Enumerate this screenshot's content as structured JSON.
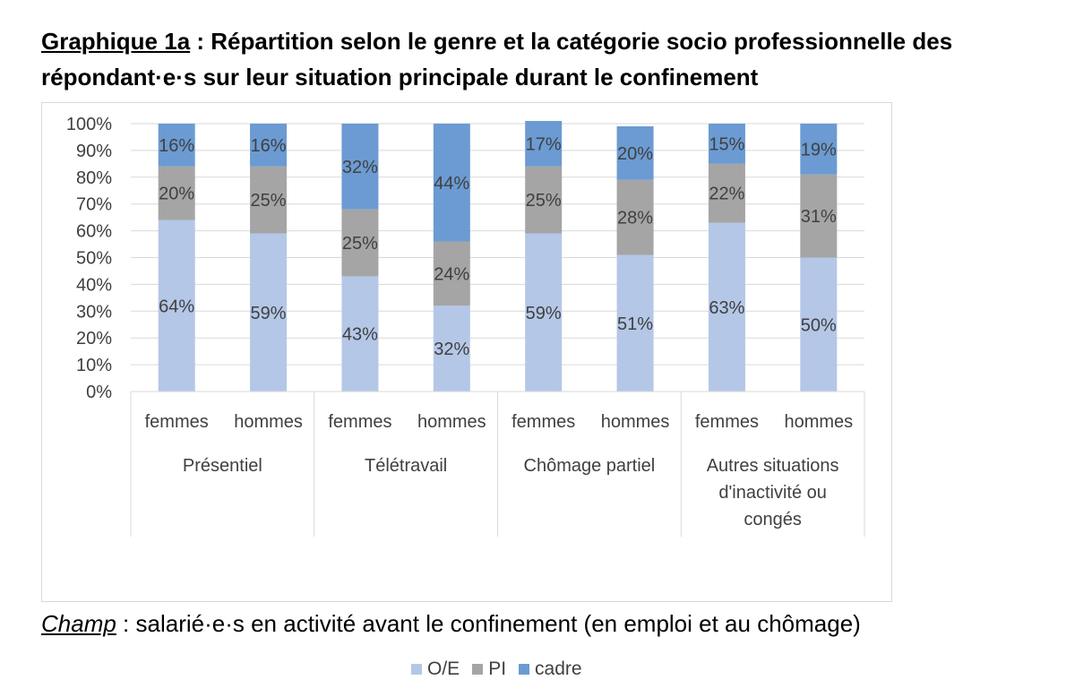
{
  "title": {
    "prefix": "Graphique 1a",
    "text": " : Répartition selon le genre et la catégorie socio professionnelle des répondant·e·s sur leur situation principale durant le confinement"
  },
  "note": {
    "prefix": "Champ",
    "text": " : salarié·e·s en activité avant le confinement (en emploi et au chômage)"
  },
  "chart_data": {
    "type": "bar",
    "stacked": true,
    "percent_stacked": true,
    "ylim": [
      0,
      100
    ],
    "yticks": [
      "0%",
      "10%",
      "20%",
      "30%",
      "40%",
      "50%",
      "60%",
      "70%",
      "80%",
      "90%",
      "100%"
    ],
    "grid": true,
    "legend_position": "bottom",
    "groups": [
      {
        "label": "Présentiel",
        "categories": [
          "femmes",
          "hommes"
        ]
      },
      {
        "label": "Télétravail",
        "categories": [
          "femmes",
          "hommes"
        ]
      },
      {
        "label": "Chômage partiel",
        "categories": [
          "femmes",
          "hommes"
        ]
      },
      {
        "label": "Autres situations d'inactivité ou congés",
        "categories": [
          "femmes",
          "hommes"
        ]
      }
    ],
    "categories": [
      "femmes",
      "hommes",
      "femmes",
      "hommes",
      "femmes",
      "hommes",
      "femmes",
      "hommes"
    ],
    "series": [
      {
        "name": "O/E",
        "color": "#b4c7e7",
        "values": [
          64,
          59,
          43,
          32,
          59,
          51,
          63,
          50
        ]
      },
      {
        "name": "PI",
        "color": "#a5a5a5",
        "values": [
          20,
          25,
          25,
          24,
          25,
          28,
          22,
          31
        ]
      },
      {
        "name": "cadre",
        "color": "#6b9bd2",
        "values": [
          16,
          16,
          32,
          44,
          17,
          20,
          15,
          19
        ]
      }
    ]
  }
}
